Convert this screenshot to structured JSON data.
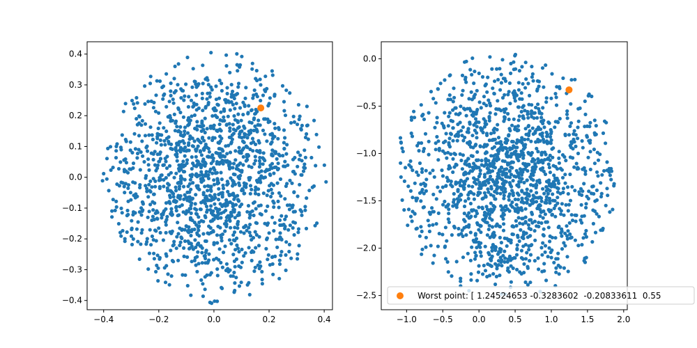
{
  "chart_data": [
    {
      "type": "scatter",
      "xlim": [
        -0.46,
        0.43
      ],
      "ylim": [
        -0.43,
        0.44
      ],
      "xticks": [
        -0.4,
        -0.2,
        0.0,
        0.2,
        0.4
      ],
      "xtick_labels": [
        "−0.4",
        "−0.2",
        "0.0",
        "0.2",
        "0.4"
      ],
      "yticks": [
        -0.4,
        -0.3,
        -0.2,
        -0.1,
        0.0,
        0.1,
        0.2,
        0.3,
        0.4
      ],
      "ytick_labels": [
        "−0.4",
        "−0.3",
        "−0.2",
        "−0.1",
        "0.0",
        "0.1",
        "0.2",
        "0.3",
        "0.4"
      ],
      "grid": false,
      "colors": {
        "points": "#1f77b4",
        "highlight": "#ff7f0e"
      },
      "series": [
        {
          "kind": "cloud",
          "count": 1500,
          "center": [
            0.0,
            0.0
          ],
          "radius": 0.41
        },
        {
          "kind": "highlight",
          "points": [
            [
              0.17,
              0.225
            ]
          ]
        }
      ]
    },
    {
      "type": "scatter",
      "xlim": [
        -1.35,
        2.05
      ],
      "ylim": [
        -2.65,
        0.18
      ],
      "xticks": [
        -1.0,
        -0.5,
        0.0,
        0.5,
        1.0,
        1.5,
        2.0
      ],
      "xtick_labels": [
        "−1.0",
        "−0.5",
        "0.0",
        "0.5",
        "1.0",
        "1.5",
        "2.0"
      ],
      "yticks": [
        -2.5,
        -2.0,
        -1.5,
        -1.0,
        -0.5,
        0.0
      ],
      "ytick_labels": [
        "−2.5",
        "−2.0",
        "−1.5",
        "−1.0",
        "−0.5",
        "0.0"
      ],
      "grid": false,
      "legend": {
        "placement": "lower-right",
        "label": "Worst point: [ 1.24524653 -0.3283602  -0.20833611  0.55"
      },
      "colors": {
        "points": "#1f77b4",
        "highlight": "#ff7f0e"
      },
      "series": [
        {
          "kind": "cloud",
          "count": 1500,
          "center": [
            0.38,
            -1.23
          ],
          "radius_x": 1.55,
          "radius_y": 1.3
        },
        {
          "kind": "highlight",
          "points": [
            [
              1.245,
              -0.328
            ]
          ]
        }
      ]
    }
  ]
}
